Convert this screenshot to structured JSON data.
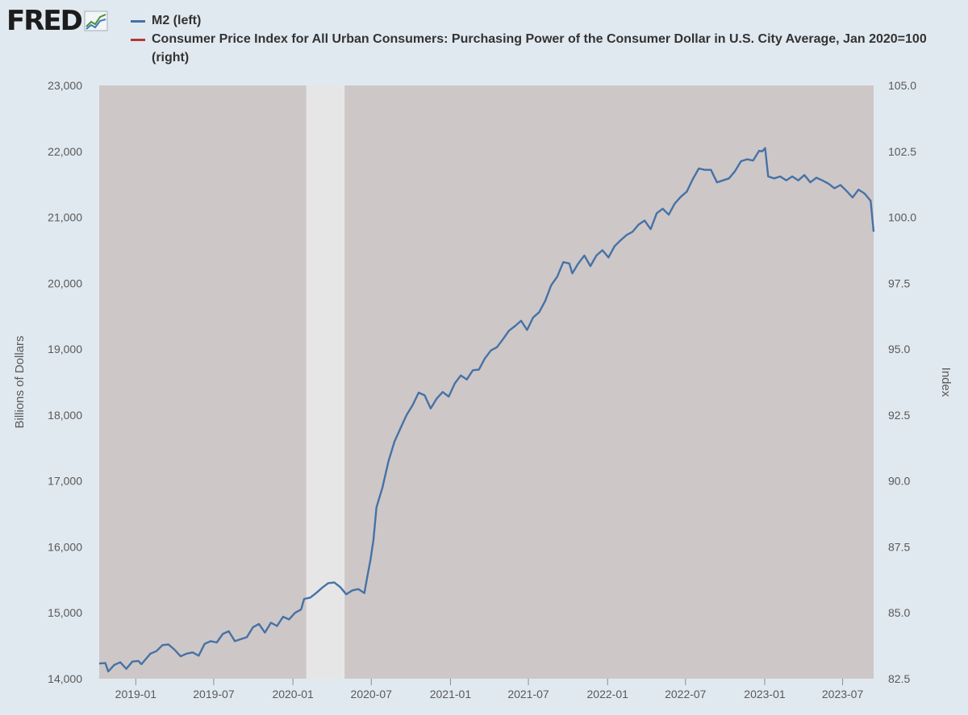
{
  "logo": {
    "text": "FRED",
    "icon": "line-chart-icon"
  },
  "colors": {
    "page_bg": "#e1e9f0",
    "plot_bg": "#cec7c7",
    "recession": "#e6e6e6",
    "m2": "#4572a7",
    "cpi": "#b03a32"
  },
  "legend": [
    {
      "label": "M2 (left)",
      "color": "#4572a7"
    },
    {
      "label": "Consumer Price Index for All Urban Consumers: Purchasing Power of the Consumer Dollar in U.S. City Average, Jan 2020=100 (right)",
      "color": "#b03a32"
    }
  ],
  "chart_data": {
    "type": "line",
    "xlabel": "",
    "ylabel_left": "Billions of Dollars",
    "ylabel_right": "Index",
    "x_range": [
      "2018-10-08",
      "2023-09-11"
    ],
    "ylim_left": [
      14000,
      23000
    ],
    "ylim_right": [
      82.5,
      105.0
    ],
    "yticks_left": [
      "14,000",
      "15,000",
      "16,000",
      "17,000",
      "18,000",
      "19,000",
      "20,000",
      "21,000",
      "22,000",
      "23,000"
    ],
    "yticks_right": [
      "82.5",
      "85.0",
      "87.5",
      "90.0",
      "92.5",
      "95.0",
      "97.5",
      "100.0",
      "102.5",
      "105.0"
    ],
    "xticks": [
      {
        "date": "2019-01-01",
        "label": "2019-01"
      },
      {
        "date": "2019-07-01",
        "label": "2019-07"
      },
      {
        "date": "2020-01-01",
        "label": "2020-01"
      },
      {
        "date": "2020-07-01",
        "label": "2020-07"
      },
      {
        "date": "2021-01-01",
        "label": "2021-01"
      },
      {
        "date": "2021-07-01",
        "label": "2021-07"
      },
      {
        "date": "2022-01-01",
        "label": "2022-01"
      },
      {
        "date": "2022-07-01",
        "label": "2022-07"
      },
      {
        "date": "2023-01-01",
        "label": "2023-01"
      },
      {
        "date": "2023-07-01",
        "label": "2023-07"
      }
    ],
    "recession": {
      "start": "2020-02-01",
      "end": "2020-04-30"
    },
    "grid": false,
    "legend_position": "top",
    "series": [
      {
        "name": "M2 (left)",
        "axis": "left",
        "points": [
          [
            "2018-10-08",
            14230
          ],
          [
            "2018-10-22",
            14240
          ],
          [
            "2018-10-29",
            14110
          ],
          [
            "2018-11-12",
            14210
          ],
          [
            "2018-11-26",
            14250
          ],
          [
            "2018-12-10",
            14150
          ],
          [
            "2018-12-24",
            14260
          ],
          [
            "2019-01-07",
            14270
          ],
          [
            "2019-01-14",
            14220
          ],
          [
            "2019-02-04",
            14380
          ],
          [
            "2019-02-18",
            14420
          ],
          [
            "2019-03-04",
            14510
          ],
          [
            "2019-03-18",
            14520
          ],
          [
            "2019-04-01",
            14440
          ],
          [
            "2019-04-15",
            14340
          ],
          [
            "2019-04-29",
            14380
          ],
          [
            "2019-05-13",
            14400
          ],
          [
            "2019-05-27",
            14350
          ],
          [
            "2019-06-10",
            14530
          ],
          [
            "2019-06-24",
            14570
          ],
          [
            "2019-07-08",
            14550
          ],
          [
            "2019-07-22",
            14680
          ],
          [
            "2019-08-05",
            14720
          ],
          [
            "2019-08-19",
            14570
          ],
          [
            "2019-09-02",
            14600
          ],
          [
            "2019-09-16",
            14630
          ],
          [
            "2019-09-30",
            14780
          ],
          [
            "2019-10-14",
            14830
          ],
          [
            "2019-10-28",
            14700
          ],
          [
            "2019-11-11",
            14850
          ],
          [
            "2019-11-25",
            14800
          ],
          [
            "2019-12-09",
            14940
          ],
          [
            "2019-12-23",
            14900
          ],
          [
            "2020-01-06",
            15000
          ],
          [
            "2020-01-20",
            15050
          ],
          [
            "2020-01-27",
            15210
          ],
          [
            "2020-02-10",
            15230
          ],
          [
            "2020-02-24",
            15300
          ],
          [
            "2020-03-09",
            15380
          ],
          [
            "2020-03-23",
            15450
          ],
          [
            "2020-04-06",
            15460
          ],
          [
            "2020-04-20",
            15390
          ],
          [
            "2020-05-04",
            15280
          ],
          [
            "2020-05-18",
            15340
          ],
          [
            "2020-06-01",
            15360
          ],
          [
            "2020-06-15",
            15300
          ],
          [
            "2020-06-22",
            15560
          ],
          [
            "2020-06-29",
            15800
          ],
          [
            "2020-07-06",
            16100
          ],
          [
            "2020-07-13",
            16600
          ],
          [
            "2020-07-27",
            16900
          ],
          [
            "2020-08-10",
            17300
          ],
          [
            "2020-08-24",
            17600
          ],
          [
            "2020-09-07",
            17800
          ],
          [
            "2020-09-21",
            18000
          ],
          [
            "2020-10-05",
            18150
          ],
          [
            "2020-10-19",
            18340
          ],
          [
            "2020-11-02",
            18300
          ],
          [
            "2020-11-16",
            18100
          ],
          [
            "2020-11-30",
            18250
          ],
          [
            "2020-12-14",
            18350
          ],
          [
            "2020-12-28",
            18280
          ],
          [
            "2021-01-11",
            18480
          ],
          [
            "2021-01-25",
            18600
          ],
          [
            "2021-02-08",
            18540
          ],
          [
            "2021-02-22",
            18680
          ],
          [
            "2021-03-08",
            18690
          ],
          [
            "2021-03-22",
            18860
          ],
          [
            "2021-04-05",
            18980
          ],
          [
            "2021-04-19",
            19030
          ],
          [
            "2021-05-03",
            19150
          ],
          [
            "2021-05-17",
            19280
          ],
          [
            "2021-05-31",
            19350
          ],
          [
            "2021-06-14",
            19430
          ],
          [
            "2021-06-28",
            19290
          ],
          [
            "2021-07-12",
            19480
          ],
          [
            "2021-07-26",
            19560
          ],
          [
            "2021-08-09",
            19730
          ],
          [
            "2021-08-23",
            19970
          ],
          [
            "2021-09-06",
            20100
          ],
          [
            "2021-09-20",
            20320
          ],
          [
            "2021-10-04",
            20300
          ],
          [
            "2021-10-11",
            20150
          ],
          [
            "2021-10-25",
            20300
          ],
          [
            "2021-11-08",
            20420
          ],
          [
            "2021-11-22",
            20260
          ],
          [
            "2021-12-06",
            20420
          ],
          [
            "2021-12-20",
            20500
          ],
          [
            "2022-01-03",
            20390
          ],
          [
            "2022-01-17",
            20560
          ],
          [
            "2022-01-31",
            20650
          ],
          [
            "2022-02-14",
            20730
          ],
          [
            "2022-02-28",
            20780
          ],
          [
            "2022-03-14",
            20890
          ],
          [
            "2022-03-28",
            20950
          ],
          [
            "2022-04-11",
            20820
          ],
          [
            "2022-04-25",
            21060
          ],
          [
            "2022-05-09",
            21130
          ],
          [
            "2022-05-23",
            21040
          ],
          [
            "2022-06-06",
            21210
          ],
          [
            "2022-06-20",
            21310
          ],
          [
            "2022-07-04",
            21390
          ],
          [
            "2022-07-18",
            21580
          ],
          [
            "2022-08-01",
            21740
          ],
          [
            "2022-08-15",
            21720
          ],
          [
            "2022-08-29",
            21720
          ],
          [
            "2022-09-12",
            21530
          ],
          [
            "2022-09-26",
            21560
          ],
          [
            "2022-10-10",
            21590
          ],
          [
            "2022-10-24",
            21700
          ],
          [
            "2022-11-07",
            21850
          ],
          [
            "2022-11-21",
            21880
          ],
          [
            "2022-12-05",
            21860
          ],
          [
            "2022-12-19",
            22010
          ],
          [
            "2022-12-26",
            22000
          ],
          [
            "2023-01-02",
            22050
          ],
          [
            "2023-01-09",
            21620
          ],
          [
            "2023-01-23",
            21590
          ],
          [
            "2023-02-06",
            21620
          ],
          [
            "2023-02-20",
            21560
          ],
          [
            "2023-03-06",
            21620
          ],
          [
            "2023-03-20",
            21560
          ],
          [
            "2023-04-03",
            21640
          ],
          [
            "2023-04-17",
            21530
          ],
          [
            "2023-05-01",
            21600
          ],
          [
            "2023-05-15",
            21560
          ],
          [
            "2023-05-29",
            21510
          ],
          [
            "2023-06-12",
            21440
          ],
          [
            "2023-06-26",
            21490
          ],
          [
            "2023-07-10",
            21400
          ],
          [
            "2023-07-24",
            21300
          ],
          [
            "2023-08-07",
            21420
          ],
          [
            "2023-08-21",
            21360
          ],
          [
            "2023-09-04",
            21250
          ],
          [
            "2023-09-11",
            20780
          ]
        ]
      },
      {
        "name": "Consumer Price Index for All Urban Consumers: Purchasing Power of the Consumer Dollar in U.S. City Average, Jan 2020=100 (right)",
        "axis": "right",
        "points": []
      }
    ]
  }
}
